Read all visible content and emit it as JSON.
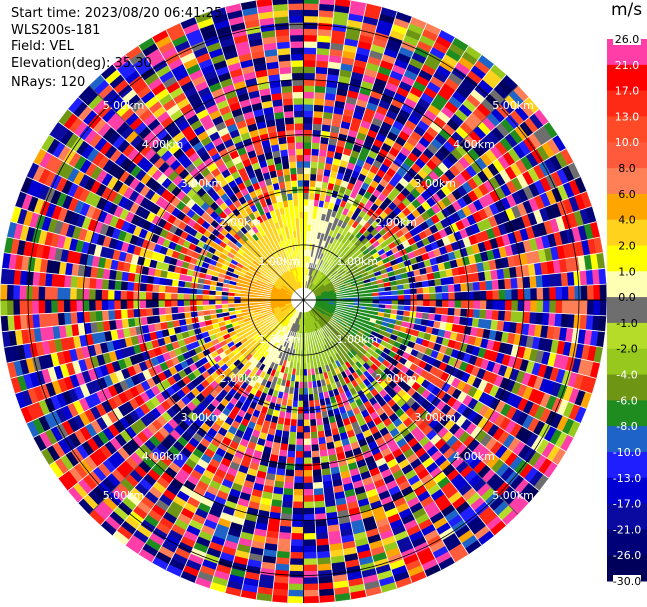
{
  "header": {
    "start_time": "Start time: 2023/08/20 06:41:25",
    "instrument": "WLS200s-181",
    "field": "Field: VEL",
    "elevation": "Elevation(deg): 35.30",
    "nrays": "NRays: 120"
  },
  "colorbar": {
    "unit": "m/s",
    "ticks": [
      "26.0",
      "21.0",
      "17.0",
      "13.0",
      "10.0",
      "8.0",
      "6.0",
      "4.0",
      "2.0",
      "1.0",
      "0.0",
      "-1.0",
      "-2.0",
      "-4.0",
      "-6.0",
      "-8.0",
      "-10.0",
      "-13.0",
      "-17.0",
      "-21.0",
      "-26.0",
      "-30.0"
    ],
    "colors": [
      "#ff3ea8",
      "#ff0000",
      "#ff2a16",
      "#ff4a28",
      "#ff5a3c",
      "#ff7f56",
      "#ffa500",
      "#ffd21e",
      "#ffff00",
      "#ffffb4",
      "#6e6e6e",
      "#b4dc28",
      "#96c81e",
      "#6e9614",
      "#1e8c1e",
      "#1e64c8",
      "#1e1eff",
      "#0000d2",
      "#0a0aa0",
      "#000078",
      "#00005a"
    ]
  },
  "chart_data": {
    "type": "ppi",
    "field": "VEL",
    "units": "m/s",
    "nrays": 120,
    "max_range_km": 5.5,
    "range_rings_km": [
      1.0,
      2.0,
      3.0,
      4.0,
      5.0
    ],
    "range_labels": [
      "1.00km",
      "2.00km",
      "3.00km",
      "4.00km",
      "5.00km"
    ],
    "value_min": -30.0,
    "value_max": 26.0,
    "near_field": [
      {
        "azimuth_deg": 0,
        "range_km": [
          0.5,
          1.9
        ],
        "velocity": 1.5
      },
      {
        "azimuth_deg": 45,
        "range_km": [
          0.3,
          1.5
        ],
        "velocity": -3.0
      },
      {
        "azimuth_deg": 90,
        "range_km": [
          0.3,
          1.3
        ],
        "velocity": -8.0
      },
      {
        "azimuth_deg": 135,
        "range_km": [
          0.3,
          1.5
        ],
        "velocity": -5.0
      },
      {
        "azimuth_deg": 180,
        "range_km": [
          0.3,
          1.2
        ],
        "velocity": -2.0
      },
      {
        "azimuth_deg": 225,
        "range_km": [
          0.3,
          1.5
        ],
        "velocity": 2.0
      },
      {
        "azimuth_deg": 270,
        "range_km": [
          0.3,
          1.2
        ],
        "velocity": 5.5
      },
      {
        "azimuth_deg": 315,
        "range_km": [
          0.3,
          1.5
        ],
        "velocity": 3.0
      }
    ],
    "far_field": "noise"
  }
}
